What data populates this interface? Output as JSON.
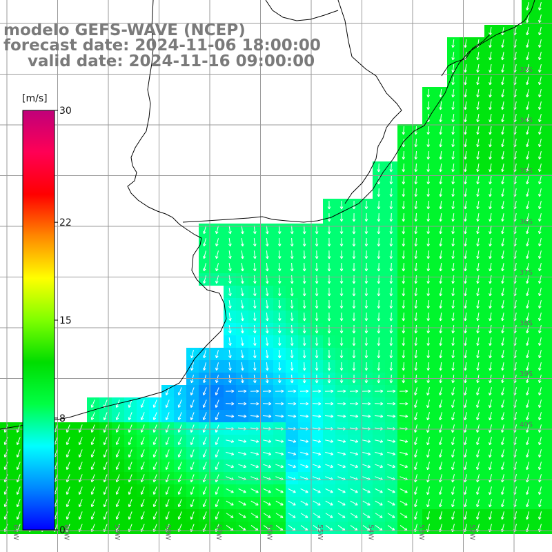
{
  "title": {
    "line1": "modelo GEFS-WAVE (NCEP)",
    "line2": "forecast date: 2024-11-06 18:00:00",
    "line3": "valid date: 2024-11-16 09:00:00"
  },
  "colorbar": {
    "unit": "[m/s]",
    "ticks": [
      "30",
      "22",
      "15",
      "8",
      "0"
    ],
    "tick_values": [
      30,
      22,
      15,
      8,
      0
    ],
    "min": 0,
    "max": 30,
    "colors": [
      "#0000ff",
      "#0088ff",
      "#00ffff",
      "#00ff44",
      "#00dd00",
      "#7fff00",
      "#ffff00",
      "#ff8800",
      "#ff0000",
      "#ff0055",
      "#c0007a"
    ]
  },
  "lat_labels": [
    "33S",
    "34S",
    "35S",
    "36S",
    "37S",
    "38S",
    "39S",
    "40S"
  ],
  "lon_labels": [
    "61W",
    "60W",
    "59W",
    "58W",
    "57W",
    "56W",
    "55W",
    "54W",
    "53W",
    "52W"
  ],
  "colors": {
    "coast": "#000000",
    "grid": "#999999",
    "arrow": "#ffffff"
  }
}
